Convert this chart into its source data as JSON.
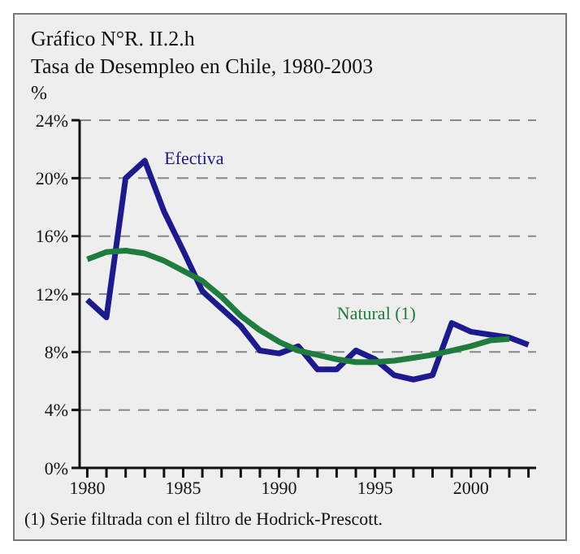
{
  "chart_data": {
    "type": "line",
    "title": "Gráfico N°R. II.2.h",
    "subtitle": "Tasa de Desempleo en Chile, 1980-2003",
    "ylabel": "%",
    "annotations": [
      "(1) Serie filtrada con el filtro de Hodrick-Prescott."
    ],
    "x": [
      1980,
      1981,
      1982,
      1983,
      1984,
      1985,
      1986,
      1987,
      1988,
      1989,
      1990,
      1991,
      1992,
      1993,
      1994,
      1995,
      1996,
      1997,
      1998,
      1999,
      2000,
      2001,
      2002,
      2003
    ],
    "series": [
      {
        "name": "Efectiva",
        "color": "#1c1a8e",
        "values": [
          11.6,
          10.4,
          20.0,
          21.2,
          17.7,
          15.0,
          12.2,
          11.0,
          9.8,
          8.1,
          7.9,
          8.4,
          6.8,
          6.8,
          8.1,
          7.5,
          6.4,
          6.1,
          6.4,
          10.0,
          9.4,
          9.2,
          9.0,
          8.5
        ]
      },
      {
        "name": "Natural (1)",
        "color": "#1e7d3c",
        "values": [
          14.4,
          14.9,
          15.0,
          14.8,
          14.3,
          13.6,
          12.9,
          11.8,
          10.5,
          9.5,
          8.7,
          8.1,
          7.8,
          7.5,
          7.3,
          7.3,
          7.4,
          7.6,
          7.8,
          8.1,
          8.4,
          8.8,
          8.9,
          null
        ]
      }
    ],
    "xlim": [
      1979.6,
      2003.4
    ],
    "xticks": [
      1980,
      {
        "value": 1981,
        "label": null
      },
      {
        "value": 1982,
        "label": null
      },
      {
        "value": 1983,
        "label": null
      },
      {
        "value": 1984,
        "label": null
      },
      1985,
      {
        "value": 1986,
        "label": null
      },
      {
        "value": 1987,
        "label": null
      },
      {
        "value": 1988,
        "label": null
      },
      {
        "value": 1989,
        "label": null
      },
      1990,
      {
        "value": 1991,
        "label": null
      },
      {
        "value": 1992,
        "label": null
      },
      {
        "value": 1993,
        "label": null
      },
      {
        "value": 1994,
        "label": null
      },
      1995,
      {
        "value": 1996,
        "label": null
      },
      {
        "value": 1997,
        "label": null
      },
      {
        "value": 1998,
        "label": null
      },
      {
        "value": 1999,
        "label": null
      },
      2000,
      {
        "value": 2001,
        "label": null
      },
      {
        "value": 2002,
        "label": null
      },
      {
        "value": 2003,
        "label": null
      }
    ],
    "ylim": [
      0,
      24
    ],
    "yticks": [
      {
        "value": 0,
        "label": "0%"
      },
      {
        "value": 4,
        "label": "4%"
      },
      {
        "value": 8,
        "label": "8%"
      },
      {
        "value": 12,
        "label": "12%"
      },
      {
        "value": 16,
        "label": "16%"
      },
      {
        "value": 20,
        "label": "20%"
      },
      {
        "value": 24,
        "label": "24%"
      }
    ],
    "grid": "y",
    "line_style": "solid",
    "marker": "none",
    "legend": false
  }
}
